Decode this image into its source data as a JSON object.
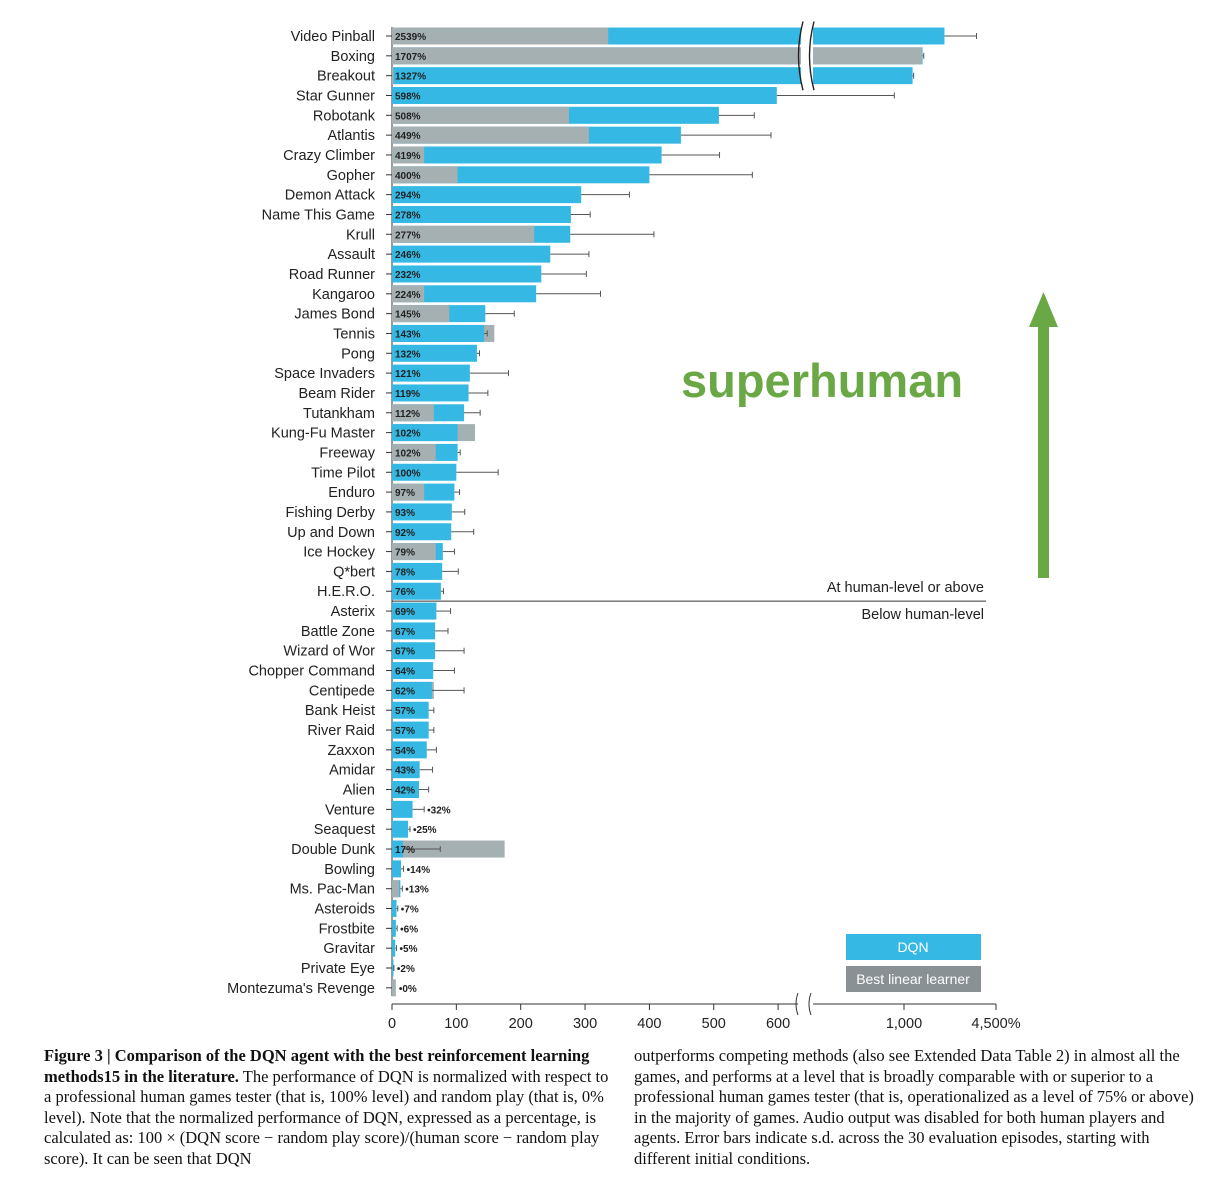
{
  "chart_data": {
    "type": "bar",
    "orientation": "horizontal",
    "categories": [
      "Video Pinball",
      "Boxing",
      "Breakout",
      "Star Gunner",
      "Robotank",
      "Atlantis",
      "Crazy Climber",
      "Gopher",
      "Demon Attack",
      "Name This Game",
      "Krull",
      "Assault",
      "Road Runner",
      "Kangaroo",
      "James Bond",
      "Tennis",
      "Pong",
      "Space Invaders",
      "Beam Rider",
      "Tutankham",
      "Kung-Fu Master",
      "Freeway",
      "Time Pilot",
      "Enduro",
      "Fishing Derby",
      "Up and Down",
      "Ice Hockey",
      "Q*bert",
      "H.E.R.O.",
      "Asterix",
      "Battle Zone",
      "Wizard of Wor",
      "Chopper Command",
      "Centipede",
      "Bank Heist",
      "River Raid",
      "Zaxxon",
      "Amidar",
      "Alien",
      "Venture",
      "Seaquest",
      "Double Dunk",
      "Bowling",
      "Ms. Pac-Man",
      "Asteroids",
      "Frostbite",
      "Gravitar",
      "Private Eye",
      "Montezuma's Revenge"
    ],
    "value_labels": [
      "2539%",
      "1707%",
      "1327%",
      "598%",
      "508%",
      "449%",
      "419%",
      "400%",
      "294%",
      "278%",
      "277%",
      "246%",
      "232%",
      "224%",
      "145%",
      "143%",
      "132%",
      "121%",
      "119%",
      "112%",
      "102%",
      "102%",
      "100%",
      "97%",
      "93%",
      "92%",
      "79%",
      "78%",
      "76%",
      "69%",
      "67%",
      "67%",
      "64%",
      "62%",
      "57%",
      "57%",
      "54%",
      "43%",
      "42%",
      "32%",
      "25%",
      "17%",
      "14%",
      "13%",
      "7%",
      "6%",
      "5%",
      "2%",
      "0%"
    ],
    "series": [
      {
        "name": "DQN",
        "color": "#35b9e4",
        "values": [
          2539,
          1707,
          1327,
          598,
          508,
          449,
          419,
          400,
          294,
          278,
          277,
          246,
          232,
          224,
          145,
          143,
          132,
          121,
          119,
          112,
          102,
          102,
          100,
          97,
          93,
          92,
          79,
          78,
          76,
          69,
          67,
          67,
          64,
          62,
          57,
          57,
          54,
          43,
          42,
          32,
          25,
          17,
          14,
          13,
          7,
          6,
          5,
          2,
          0
        ],
        "error": [
          1220,
          45,
          40,
          33,
          55,
          140,
          90,
          160,
          75,
          30,
          130,
          60,
          70,
          100,
          45,
          5,
          4,
          60,
          30,
          25,
          0,
          4,
          65,
          8,
          20,
          35,
          18,
          25,
          4,
          22,
          20,
          45,
          33,
          50,
          8,
          8,
          15,
          20,
          15,
          18,
          3,
          58,
          4,
          3,
          2,
          2,
          2,
          1,
          0
        ]
      },
      {
        "name": "Best linear learner",
        "color": "#a5b0b2",
        "values": [
          336,
          1682,
          2,
          0,
          275,
          306,
          50,
          102,
          0,
          0,
          221,
          0,
          0,
          50,
          89,
          159,
          0,
          0,
          0,
          65,
          129,
          68,
          0,
          50,
          0,
          0,
          68,
          0,
          0,
          0,
          0,
          0,
          0,
          65,
          0,
          0,
          0,
          0,
          0,
          0,
          0,
          175,
          0,
          11,
          0,
          0,
          0,
          0,
          6
        ]
      }
    ],
    "xlabel": "",
    "ylabel": "",
    "x_ticks": [
      "0",
      "100",
      "200",
      "300",
      "400",
      "500",
      "600",
      "1,000",
      "4,500%"
    ],
    "axis_break": "between 600 and 1,000",
    "legend": {
      "position": "bottom-right",
      "labels": [
        "DQN",
        "Best linear learner"
      ]
    },
    "annotations": {
      "human_level_above": "At human-level or above",
      "human_level_below": "Below human-level",
      "arrow_label": "superhuman",
      "arrow_color": "#6aa845"
    }
  },
  "caption": {
    "heading": "Figure 3 | Comparison of the DQN agent with the best reinforcement learning methods15 in the literature.",
    "left_text": "The performance of DQN is normalized with respect to a professional human games tester (that is, 100% level) and random play (that is, 0% level). Note that the normalized performance of DQN, expressed as a percentage, is calculated as: 100 × (DQN score − random play score)/(human score − random play score). It can be seen that DQN",
    "right_text": "outperforms competing methods (also see Extended Data Table 2) in almost all the games, and performs at a level that is broadly comparable with or superior to a professional human games tester (that is, operationalized as a level of 75% or above) in the majority of games. Audio output was disabled for both human players and agents. Error bars indicate s.d. across the 30 evaluation episodes, starting with different initial conditions."
  }
}
